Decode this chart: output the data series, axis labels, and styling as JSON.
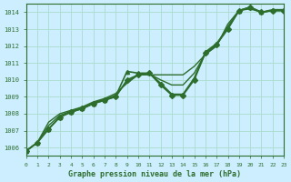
{
  "title": "Graphe pression niveau de la mer (hPa)",
  "bg_color": "#cceeff",
  "grid_color": "#aaddcc",
  "line_color": "#2d6e2d",
  "xlim": [
    0,
    23
  ],
  "ylim": [
    1005.5,
    1014.5
  ],
  "yticks": [
    1006,
    1007,
    1008,
    1009,
    1010,
    1011,
    1012,
    1013,
    1014
  ],
  "xticks": [
    0,
    1,
    2,
    3,
    4,
    5,
    6,
    7,
    8,
    9,
    10,
    11,
    12,
    13,
    14,
    15,
    16,
    17,
    18,
    19,
    20,
    21,
    22,
    23
  ],
  "series": [
    {
      "x": [
        0,
        1,
        2,
        3,
        4,
        5,
        6,
        7,
        8,
        9,
        10,
        11,
        12,
        13,
        14,
        15,
        16,
        17,
        18,
        19,
        20,
        21,
        22,
        23
      ],
      "y": [
        1005.8,
        1006.3,
        1007.1,
        1007.8,
        1008.1,
        1008.3,
        1008.6,
        1008.8,
        1009.0,
        1010.0,
        1010.3,
        1010.4,
        1009.7,
        1009.1,
        1009.1,
        1010.0,
        1011.6,
        1012.1,
        1013.0,
        1014.1,
        1014.3,
        1014.0,
        1014.1,
        1014.1
      ],
      "marker": "D",
      "markersize": 3,
      "linewidth": 1.2
    },
    {
      "x": [
        0,
        1,
        2,
        3,
        4,
        5,
        6,
        7,
        8,
        9,
        10,
        11,
        12,
        13,
        14,
        15,
        16,
        17,
        18,
        19,
        20,
        21,
        22,
        23
      ],
      "y": [
        1005.8,
        1006.3,
        1007.5,
        1008.0,
        1008.2,
        1008.4,
        1008.7,
        1008.9,
        1009.2,
        1009.8,
        1010.3,
        1010.3,
        1010.3,
        1010.3,
        1010.3,
        1010.8,
        1011.5,
        1012.0,
        1013.3,
        1014.1,
        1014.2,
        1014.0,
        1014.1,
        1014.1
      ],
      "marker": null,
      "markersize": 0,
      "linewidth": 1.0
    },
    {
      "x": [
        0,
        1,
        2,
        3,
        4,
        5,
        6,
        7,
        8,
        9,
        10,
        11,
        12,
        13,
        14,
        15,
        16,
        17,
        18,
        19,
        20,
        21,
        22,
        23
      ],
      "y": [
        1005.8,
        1006.3,
        1007.3,
        1007.9,
        1008.15,
        1008.35,
        1008.65,
        1008.85,
        1009.1,
        1009.9,
        1010.3,
        1010.35,
        1010.0,
        1009.7,
        1009.7,
        1010.4,
        1011.55,
        1012.05,
        1013.15,
        1014.1,
        1014.25,
        1014.0,
        1014.1,
        1014.1
      ],
      "marker": null,
      "markersize": 0,
      "linewidth": 1.0
    },
    {
      "x": [
        0,
        1,
        2,
        3,
        4,
        5,
        6,
        7,
        8,
        9,
        10,
        11,
        12,
        13,
        14,
        15,
        16,
        17,
        18,
        19,
        20,
        21,
        22,
        23
      ],
      "y": [
        1005.8,
        1006.3,
        1007.1,
        1007.8,
        1008.1,
        1008.3,
        1008.6,
        1008.8,
        1009.05,
        1010.5,
        1010.4,
        1010.4,
        1009.8,
        1009.15,
        1009.15,
        1010.1,
        1011.65,
        1012.15,
        1013.05,
        1014.1,
        1014.3,
        1014.0,
        1014.15,
        1014.15
      ],
      "marker": "^",
      "markersize": 3,
      "linewidth": 1.2
    }
  ]
}
